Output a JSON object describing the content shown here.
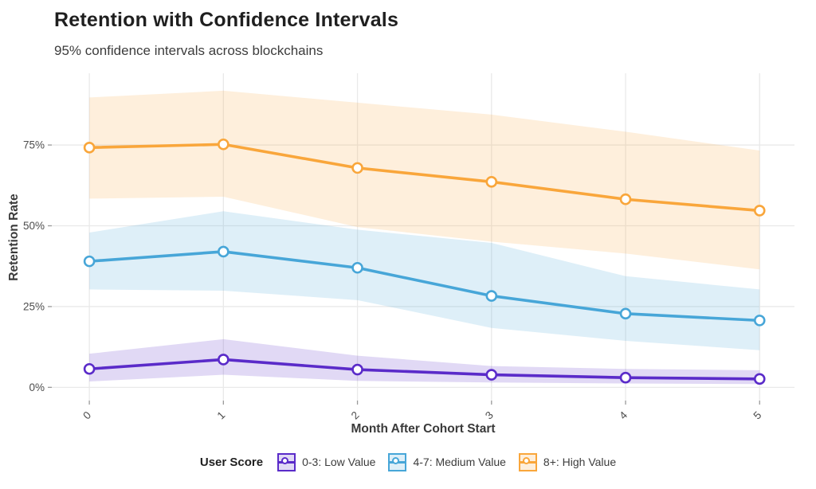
{
  "header": {
    "title": "Retention with Confidence Intervals",
    "subtitle": "95% confidence intervals across blockchains"
  },
  "axes": {
    "x_title": "Month After Cohort Start",
    "y_title": "Retention Rate"
  },
  "legend": {
    "title": "User Score"
  },
  "chart_data": {
    "type": "line",
    "title": "Retention with Confidence Intervals",
    "subtitle": "95% confidence intervals across blockchains",
    "xlabel": "Month After Cohort Start",
    "ylabel": "Retention Rate",
    "legend_title": "User Score",
    "legend_position": "bottom",
    "confidence_level": "95%",
    "grid": true,
    "x": [
      0,
      1,
      2,
      3,
      4,
      5
    ],
    "x_tick_labels": [
      "0",
      "1",
      "2",
      "3",
      "4",
      "5"
    ],
    "y_ticks": [
      0,
      25,
      50,
      75
    ],
    "y_tick_labels": [
      "0%",
      "25%",
      "50%",
      "75%"
    ],
    "xlim": [
      -0.28,
      5.26
    ],
    "ylim": [
      -4.1,
      97.2
    ],
    "series": [
      {
        "id": "low",
        "name": "0-3: Low Value",
        "color": "#5A2BC9",
        "values": [
          5.7,
          8.6,
          5.5,
          3.9,
          3.0,
          2.6
        ],
        "ci_lower": [
          1.8,
          3.9,
          2.0,
          1.5,
          1.2,
          1.0
        ],
        "ci_upper": [
          10.4,
          14.9,
          9.8,
          6.6,
          5.7,
          5.3
        ]
      },
      {
        "id": "medium",
        "name": "4-7: Medium Value",
        "color": "#47A6D8",
        "values": [
          39.0,
          42.0,
          37.0,
          28.3,
          22.8,
          20.7
        ],
        "ci_lower": [
          30.3,
          29.9,
          27.0,
          18.4,
          14.4,
          11.5
        ],
        "ci_upper": [
          47.9,
          54.5,
          48.8,
          44.7,
          34.4,
          30.3
        ]
      },
      {
        "id": "high",
        "name": "8+: High Value",
        "color": "#F9A63B",
        "values": [
          74.2,
          75.2,
          67.9,
          63.6,
          58.2,
          54.7
        ],
        "ci_lower": [
          58.4,
          59.0,
          49.6,
          45.1,
          41.4,
          36.5
        ],
        "ci_upper": [
          89.7,
          91.8,
          88.1,
          84.4,
          79.1,
          73.3
        ]
      }
    ]
  },
  "style": {
    "band_opacity": 0.18,
    "gridline_color": "#E9E9E9",
    "tick_color": "#9A9A9A",
    "tick_label_color": "#4D4D4D",
    "axis_title_color": "#3A3A3A",
    "background": "#FFFFFF"
  }
}
